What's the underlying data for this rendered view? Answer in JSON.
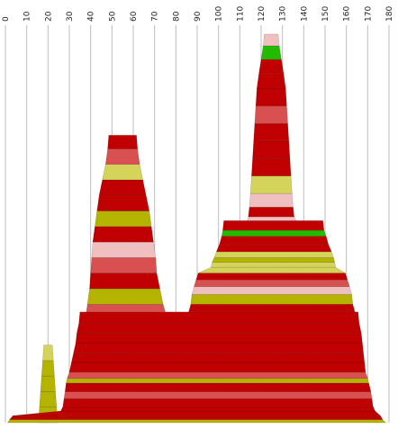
{
  "chart_data": {
    "type": "area",
    "title": "",
    "xlabel": "",
    "ylabel": "",
    "x_ticks": [
      0,
      10,
      20,
      30,
      40,
      50,
      60,
      70,
      80,
      90,
      100,
      110,
      120,
      130,
      140,
      150,
      160,
      170,
      180
    ],
    "xlim": [
      0,
      180
    ],
    "grid": true,
    "band_colors": {
      "red": "#c00000",
      "salmon": "#d95050",
      "pink": "#f0c0c0",
      "olive": "#b3b300",
      "khaki": "#d4d45a",
      "green": "#22bb00"
    },
    "profiles": [
      {
        "name": "peak-left-small",
        "bands": [
          {
            "y": [
              0.0,
              0.04
            ],
            "x": [
              15.5,
              24.5
            ],
            "color": "olive"
          },
          {
            "y": [
              0.04,
              0.08
            ],
            "x": [
              16.0,
              24.0
            ],
            "color": "olive"
          },
          {
            "y": [
              0.08,
              0.12
            ],
            "x": [
              16.5,
              23.5
            ],
            "color": "olive"
          },
          {
            "y": [
              0.12,
              0.16
            ],
            "x": [
              17.0,
              23.0
            ],
            "color": "olive"
          },
          {
            "y": [
              0.16,
              0.2
            ],
            "x": [
              17.5,
              22.5
            ],
            "color": "khaki"
          }
        ]
      },
      {
        "name": "main-mass",
        "bands": [
          {
            "y": [
              0.0,
              0.008
            ],
            "x": [
              1.0,
              178.5
            ],
            "color": "olive"
          },
          {
            "y": [
              0.008,
              0.018
            ],
            "x": [
              2.0,
              177.0
            ],
            "color": "red"
          },
          {
            "y": [
              0.018,
              0.03
            ],
            "x": [
              3.5,
              176.0
            ],
            "color": "red"
          },
          {
            "y": [
              0.03,
              0.042
            ],
            "x": [
              26.0,
              173.5
            ],
            "color": "red"
          },
          {
            "y": [
              0.042,
              0.062
            ],
            "x": [
              27.0,
              172.5
            ],
            "color": "red"
          },
          {
            "y": [
              0.062,
              0.08
            ],
            "x": [
              27.5,
              172.0
            ],
            "color": "salmon"
          },
          {
            "y": [
              0.08,
              0.102
            ],
            "x": [
              28.0,
              171.5
            ],
            "color": "red"
          },
          {
            "y": [
              0.102,
              0.114
            ],
            "x": [
              28.5,
              170.5
            ],
            "color": "olive"
          },
          {
            "y": [
              0.114,
              0.13
            ],
            "x": [
              29.0,
              170.0
            ],
            "color": "salmon"
          },
          {
            "y": [
              0.13,
              0.155
            ],
            "x": [
              30.0,
              169.0
            ],
            "color": "red"
          },
          {
            "y": [
              0.155,
              0.18
            ],
            "x": [
              31.0,
              168.5
            ],
            "color": "red"
          },
          {
            "y": [
              0.18,
              0.205
            ],
            "x": [
              32.0,
              168.0
            ],
            "color": "red"
          },
          {
            "y": [
              0.205,
              0.23
            ],
            "x": [
              33.0,
              167.5
            ],
            "color": "red"
          },
          {
            "y": [
              0.23,
              0.256
            ],
            "x": [
              33.5,
              167.0
            ],
            "color": "red"
          },
          {
            "y": [
              0.256,
              0.285
            ],
            "x": [
              34.5,
              166.0
            ],
            "color": "red"
          }
        ]
      },
      {
        "name": "peak-center",
        "bands": [
          {
            "y": [
              0.285,
              0.305
            ],
            "x": [
              38.0,
              75.0
            ],
            "color": "salmon"
          },
          {
            "y": [
              0.305,
              0.345
            ],
            "x": [
              38.5,
              74.0
            ],
            "color": "olive"
          },
          {
            "y": [
              0.345,
              0.385
            ],
            "x": [
              39.5,
              72.5
            ],
            "color": "red"
          },
          {
            "y": [
              0.385,
              0.425
            ],
            "x": [
              40.0,
              71.0
            ],
            "color": "salmon"
          },
          {
            "y": [
              0.425,
              0.465
            ],
            "x": [
              40.5,
              70.5
            ],
            "color": "pink"
          },
          {
            "y": [
              0.465,
              0.505
            ],
            "x": [
              41.0,
              69.5
            ],
            "color": "red"
          },
          {
            "y": [
              0.505,
              0.545
            ],
            "x": [
              42.0,
              68.5
            ],
            "color": "olive"
          },
          {
            "y": [
              0.545,
              0.585
            ],
            "x": [
              43.0,
              67.5
            ],
            "color": "red"
          },
          {
            "y": [
              0.585,
              0.625
            ],
            "x": [
              44.0,
              66.0
            ],
            "color": "red"
          },
          {
            "y": [
              0.625,
              0.665
            ],
            "x": [
              45.5,
              64.5
            ],
            "color": "khaki"
          },
          {
            "y": [
              0.665,
              0.705
            ],
            "x": [
              47.0,
              63.0
            ],
            "color": "salmon"
          },
          {
            "y": [
              0.705,
              0.74
            ],
            "x": [
              48.0,
              62.0
            ],
            "color": "red"
          }
        ]
      },
      {
        "name": "plateau-right",
        "bands": [
          {
            "y": [
              0.285,
              0.305
            ],
            "x": [
              86.0,
              164.0
            ],
            "color": "red"
          },
          {
            "y": [
              0.305,
              0.33
            ],
            "x": [
              87.0,
              163.0
            ],
            "color": "olive"
          },
          {
            "y": [
              0.33,
              0.35
            ],
            "x": [
              87.5,
              162.5
            ],
            "color": "pink"
          },
          {
            "y": [
              0.35,
              0.368
            ],
            "x": [
              88.5,
              161.5
            ],
            "color": "salmon"
          },
          {
            "y": [
              0.368,
              0.385
            ],
            "x": [
              89.5,
              160.5
            ],
            "color": "red"
          },
          {
            "y": [
              0.385,
              0.4
            ],
            "x": [
              90.5,
              159.5
            ],
            "color": "khaki"
          },
          {
            "y": [
              0.4,
              0.413
            ],
            "x": [
              96.5,
              155.0
            ],
            "color": "khaki"
          },
          {
            "y": [
              0.413,
              0.425
            ],
            "x": [
              97.0,
              154.5
            ],
            "color": "olive"
          },
          {
            "y": [
              0.425,
              0.44
            ],
            "x": [
              98.0,
              154.0
            ],
            "color": "khaki"
          },
          {
            "y": [
              0.44,
              0.46
            ],
            "x": [
              99.0,
              153.0
            ],
            "color": "red"
          },
          {
            "y": [
              0.46,
              0.48
            ],
            "x": [
              100.5,
              151.5
            ],
            "color": "red"
          },
          {
            "y": [
              0.48,
              0.495
            ],
            "x": [
              101.5,
              150.5
            ],
            "color": "green"
          },
          {
            "y": [
              0.495,
              0.52
            ],
            "x": [
              102.0,
              149.5
            ],
            "color": "red"
          }
        ]
      },
      {
        "name": "peak-right",
        "bands": [
          {
            "y": [
              0.52,
              0.53
            ],
            "x": [
              113.5,
              136.5
            ],
            "color": "pink"
          },
          {
            "y": [
              0.53,
              0.555
            ],
            "x": [
              114.0,
              135.5
            ],
            "color": "red"
          },
          {
            "y": [
              0.555,
              0.59
            ],
            "x": [
              114.5,
              135.0
            ],
            "color": "pink"
          },
          {
            "y": [
              0.59,
              0.635
            ],
            "x": [
              115.0,
              134.5
            ],
            "color": "khaki"
          },
          {
            "y": [
              0.635,
              0.68
            ],
            "x": [
              115.5,
              134.0
            ],
            "color": "red"
          },
          {
            "y": [
              0.68,
              0.725
            ],
            "x": [
              116.0,
              133.5
            ],
            "color": "red"
          },
          {
            "y": [
              0.725,
              0.77
            ],
            "x": [
              116.5,
              133.0
            ],
            "color": "red"
          },
          {
            "y": [
              0.77,
              0.815
            ],
            "x": [
              117.0,
              132.5
            ],
            "color": "salmon"
          },
          {
            "y": [
              0.815,
              0.86
            ],
            "x": [
              117.5,
              132.0
            ],
            "color": "red"
          },
          {
            "y": [
              0.86,
              0.9
            ],
            "x": [
              118.0,
              131.5
            ],
            "color": "red"
          },
          {
            "y": [
              0.9,
              0.935
            ],
            "x": [
              119.0,
              130.5
            ],
            "color": "red"
          },
          {
            "y": [
              0.935,
              0.97
            ],
            "x": [
              120.0,
              129.5
            ],
            "color": "green"
          },
          {
            "y": [
              0.97,
              1.0
            ],
            "x": [
              121.0,
              128.5
            ],
            "color": "pink"
          }
        ]
      }
    ]
  }
}
